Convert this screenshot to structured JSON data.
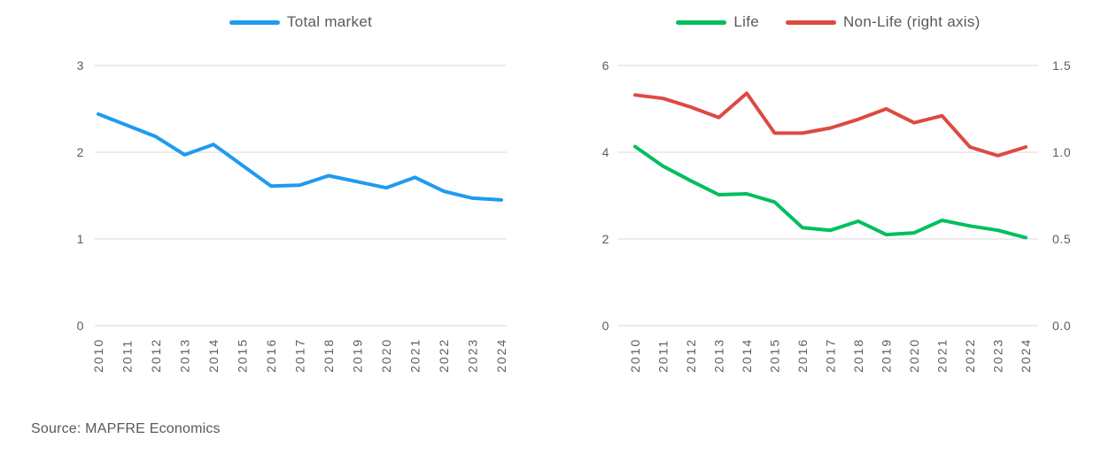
{
  "source_note": "Source: MAPFRE Economics",
  "colors": {
    "total_market": "#1f9bf0",
    "life": "#00bf5f",
    "non_life": "#dc4a42",
    "tick_text": "#5d5d5d",
    "legend_text": "#595959",
    "gridline": "#d9d9d9"
  },
  "chart_data": [
    {
      "type": "line",
      "title": "",
      "legend_position": "top",
      "grid": true,
      "categories": [
        "2010",
        "2011",
        "2012",
        "2013",
        "2014",
        "2015",
        "2016",
        "2017",
        "2018",
        "2019",
        "2020",
        "2021",
        "2022",
        "2023",
        "2024"
      ],
      "series": [
        {
          "name": "Total market",
          "color": "#1f9bf0",
          "axis": "left",
          "values": [
            2.44,
            2.31,
            2.18,
            1.97,
            2.09,
            1.85,
            1.61,
            1.62,
            1.73,
            1.66,
            1.59,
            1.71,
            1.55,
            1.47,
            1.45
          ]
        }
      ],
      "left_axis": {
        "min": 0,
        "max": 3,
        "ticks": [
          "0",
          "1",
          "2",
          "3"
        ]
      }
    },
    {
      "type": "line",
      "title": "",
      "legend_position": "top",
      "grid": true,
      "categories": [
        "2010",
        "2011",
        "2012",
        "2013",
        "2014",
        "2015",
        "2016",
        "2017",
        "2018",
        "2019",
        "2020",
        "2021",
        "2022",
        "2023",
        "2024"
      ],
      "series": [
        {
          "name": "Life",
          "color": "#00bf5f",
          "axis": "left",
          "values": [
            4.13,
            3.68,
            3.34,
            3.02,
            3.04,
            2.85,
            2.26,
            2.2,
            2.41,
            2.1,
            2.14,
            2.43,
            2.3,
            2.2,
            2.03
          ]
        },
        {
          "name": "Non-Life (right axis)",
          "color": "#dc4a42",
          "axis": "right",
          "values": [
            1.33,
            1.31,
            1.26,
            1.2,
            1.34,
            1.11,
            1.11,
            1.14,
            1.19,
            1.25,
            1.17,
            1.21,
            1.03,
            0.98,
            1.03
          ]
        }
      ],
      "left_axis": {
        "min": 0,
        "max": 6,
        "ticks": [
          "0",
          "2",
          "4",
          "6"
        ]
      },
      "right_axis": {
        "min": 0,
        "max": 1.5,
        "ticks": [
          "0.0",
          "0.5",
          "1.0",
          "1.5"
        ]
      }
    }
  ]
}
